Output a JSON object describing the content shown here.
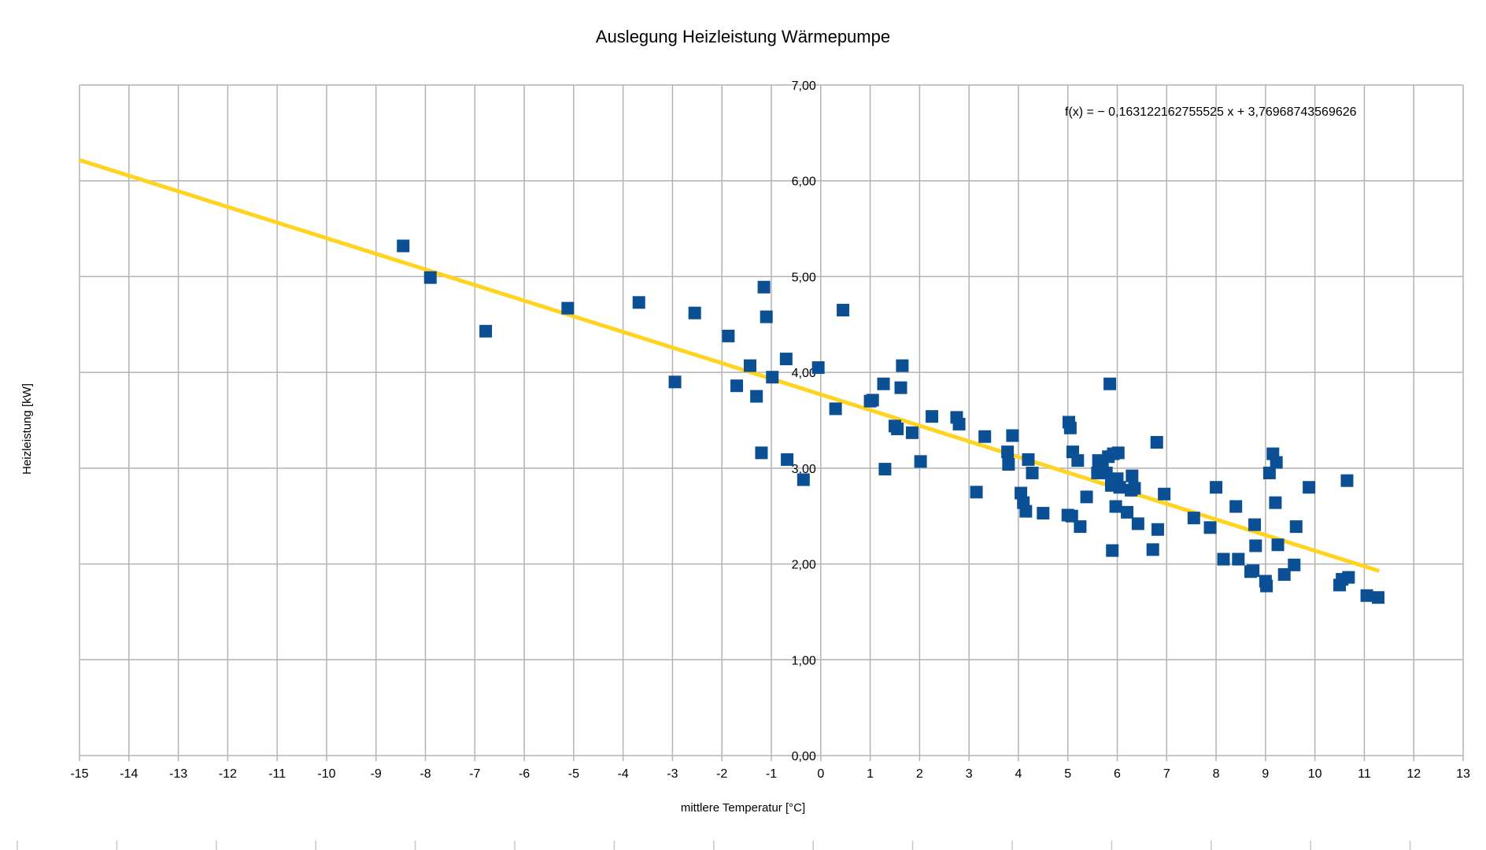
{
  "chart_data": {
    "type": "scatter",
    "title": "Auslegung Heizleistung Wärmepumpe",
    "xlabel": "mittlere Temperatur [°C]",
    "ylabel": "Heizleistung [kW]",
    "xlim": [
      -15,
      13
    ],
    "ylim": [
      0,
      7
    ],
    "x_ticks": [
      -15,
      -14,
      -13,
      -12,
      -11,
      -10,
      -9,
      -8,
      -7,
      -6,
      -5,
      -4,
      -3,
      -2,
      -1,
      0,
      1,
      2,
      3,
      4,
      5,
      6,
      7,
      8,
      9,
      10,
      11,
      12,
      13
    ],
    "x_tick_labels": [
      "-15",
      "-14",
      "-13",
      "-12",
      "-11",
      "-10",
      "-9",
      "-8",
      "-7",
      "-6",
      "-5",
      "-4",
      "-3",
      "-2",
      "-1",
      "0",
      "1",
      "2",
      "3",
      "4",
      "5",
      "6",
      "7",
      "8",
      "9",
      "10",
      "11",
      "12",
      "13"
    ],
    "y_ticks": [
      0,
      1,
      2,
      3,
      4,
      5,
      6,
      7
    ],
    "y_tick_labels": [
      "0,00",
      "1,00",
      "2,00",
      "3,00",
      "4,00",
      "5,00",
      "6,00",
      "7,00"
    ],
    "grid": true,
    "colors": {
      "points": "#0b4f94",
      "trend": "#ffd320",
      "grid": "#b3b3b3"
    },
    "trendline": {
      "equation": "f(x) = − 0,163122162755525 x + 3,76968743569626",
      "slope": -0.163122162755525,
      "intercept": 3.76968743569626,
      "x_range": [
        -15,
        11.3
      ]
    },
    "series": [
      {
        "x": [
          -8.45,
          -7.9,
          -6.78,
          -5.12,
          -3.68,
          -2.95,
          -2.55,
          -1.87,
          -1.7,
          -1.43,
          -1.3,
          -1.2,
          -1.15,
          -1.1,
          -0.98,
          -0.7,
          -0.68,
          -0.35,
          -0.05,
          0.3,
          0.45,
          1.0,
          1.05,
          1.27,
          1.3,
          1.5,
          1.55,
          1.62,
          1.65,
          1.85,
          2.02,
          2.25,
          2.75,
          2.8,
          3.15,
          3.32,
          3.78,
          3.8,
          3.88,
          4.05,
          4.1,
          4.15,
          4.2,
          4.28,
          4.5,
          5.0,
          5.02,
          5.05,
          5.08,
          5.1,
          5.2,
          5.25,
          5.38,
          5.6,
          5.62,
          5.7,
          5.78,
          5.82,
          5.85,
          5.88,
          5.9,
          5.92,
          5.97,
          6.0,
          6.02,
          6.05,
          6.2,
          6.28,
          6.3,
          6.35,
          6.42,
          6.72,
          6.8,
          6.82,
          6.95,
          7.55,
          7.88,
          8.0,
          8.15,
          8.4,
          8.45,
          8.7,
          8.75,
          8.78,
          8.8,
          9.0,
          9.02,
          9.08,
          9.15,
          9.2,
          9.22,
          9.25,
          9.38,
          9.58,
          9.62,
          9.88,
          10.5,
          10.55,
          10.65,
          10.68,
          11.05,
          11.28
        ],
        "y": [
          5.32,
          4.99,
          4.43,
          4.67,
          4.73,
          3.9,
          4.62,
          4.38,
          3.86,
          4.07,
          3.75,
          3.16,
          4.89,
          4.58,
          3.95,
          4.14,
          3.09,
          2.88,
          4.05,
          3.62,
          4.65,
          3.7,
          3.71,
          3.88,
          2.99,
          3.44,
          3.41,
          3.84,
          4.07,
          3.37,
          3.07,
          3.54,
          3.53,
          3.46,
          2.75,
          3.33,
          3.17,
          3.04,
          3.34,
          2.74,
          2.64,
          2.55,
          3.09,
          2.95,
          2.53,
          2.51,
          3.48,
          3.42,
          2.5,
          3.17,
          3.08,
          2.39,
          2.7,
          2.95,
          3.08,
          3.05,
          2.95,
          3.12,
          3.88,
          2.82,
          2.14,
          3.15,
          2.6,
          2.89,
          3.16,
          2.8,
          2.54,
          2.77,
          2.92,
          2.79,
          2.42,
          2.15,
          3.27,
          2.36,
          2.73,
          2.48,
          2.38,
          2.8,
          2.05,
          2.6,
          2.05,
          1.92,
          1.93,
          2.41,
          2.19,
          1.82,
          1.77,
          2.95,
          3.15,
          2.64,
          3.06,
          2.2,
          1.89,
          1.99,
          2.39,
          2.8,
          1.78,
          1.84,
          2.87,
          1.86,
          1.67,
          1.65
        ]
      }
    ]
  }
}
